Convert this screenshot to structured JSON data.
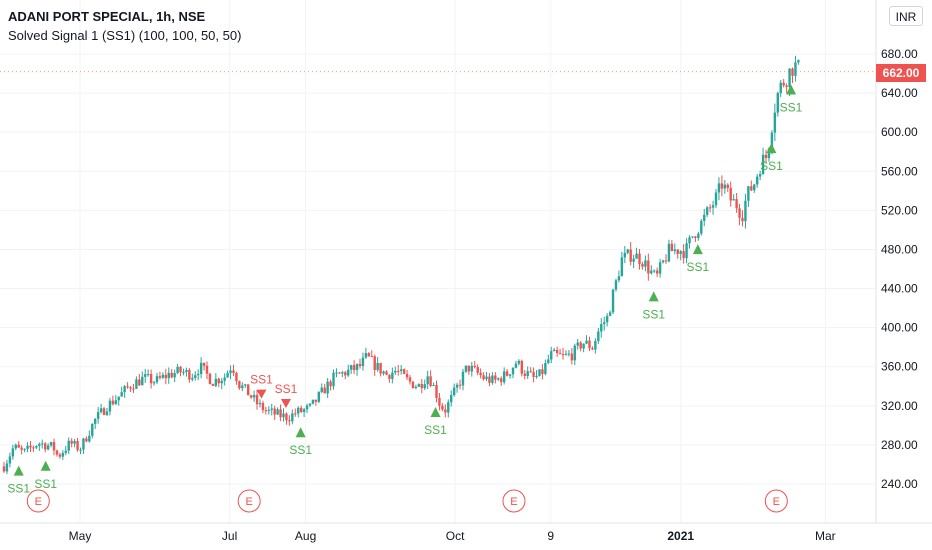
{
  "header": {
    "title": "ADANI PORT SPECIAL, 1h, NSE",
    "subtitle": "Solved Signal 1 (SS1) (100, 100, 50, 50)",
    "currency_button": "INR",
    "last_price_label": "662.00"
  },
  "colors": {
    "up": "#26a69a",
    "down": "#ef5350",
    "signal_buy": "#4caf50",
    "signal_sell": "#ef5350",
    "grid": "#f0f3fa",
    "axis_text": "#131722",
    "earnings": "#ef5350"
  },
  "icons": {
    "earnings_marker": "circle-E-icon",
    "buy_signal": "triangle-up-icon",
    "sell_signal": "triangle-down-icon"
  },
  "chart_data": {
    "type": "candlestick",
    "title": "ADANI PORT SPECIAL, 1h, NSE",
    "ylim": [
      220,
      720
    ],
    "x_range_days": [
      0,
      332
    ],
    "y_ticks": [
      "680.00",
      "640.00",
      "600.00",
      "560.00",
      "520.00",
      "480.00",
      "440.00",
      "400.00",
      "360.00",
      "320.00",
      "280.00",
      "240.00"
    ],
    "x_ticks": [
      {
        "label": "May",
        "day": 31
      },
      {
        "label": "Jul",
        "day": 92
      },
      {
        "label": "Aug",
        "day": 123
      },
      {
        "label": "Oct",
        "day": 184
      },
      {
        "label": "9",
        "day": 223
      },
      {
        "label": "2021",
        "day": 276
      },
      {
        "label": "Mar",
        "day": 335
      }
    ],
    "last_price": 662.0,
    "grid": true,
    "price_path": [
      [
        0,
        258
      ],
      [
        4,
        278
      ],
      [
        8,
        272
      ],
      [
        14,
        282
      ],
      [
        20,
        278
      ],
      [
        22,
        268
      ],
      [
        27,
        282
      ],
      [
        31,
        276
      ],
      [
        34,
        290
      ],
      [
        37,
        305
      ],
      [
        42,
        320
      ],
      [
        47,
        330
      ],
      [
        52,
        342
      ],
      [
        57,
        348
      ],
      [
        62,
        345
      ],
      [
        67,
        352
      ],
      [
        72,
        355
      ],
      [
        77,
        352
      ],
      [
        80,
        360
      ],
      [
        85,
        345
      ],
      [
        90,
        350
      ],
      [
        93,
        362
      ],
      [
        96,
        342
      ],
      [
        100,
        332
      ],
      [
        104,
        320
      ],
      [
        107,
        315
      ],
      [
        110,
        312
      ],
      [
        113,
        310
      ],
      [
        116,
        308
      ],
      [
        119,
        313
      ],
      [
        122,
        315
      ],
      [
        125,
        318
      ],
      [
        128,
        328
      ],
      [
        131,
        338
      ],
      [
        135,
        350
      ],
      [
        140,
        355
      ],
      [
        145,
        360
      ],
      [
        148,
        370
      ],
      [
        152,
        360
      ],
      [
        156,
        352
      ],
      [
        160,
        356
      ],
      [
        165,
        345
      ],
      [
        169,
        340
      ],
      [
        173,
        352
      ],
      [
        176,
        335
      ],
      [
        178,
        320
      ],
      [
        180,
        316
      ],
      [
        183,
        330
      ],
      [
        186,
        345
      ],
      [
        189,
        360
      ],
      [
        192,
        355
      ],
      [
        196,
        348
      ],
      [
        200,
        345
      ],
      [
        205,
        352
      ],
      [
        209,
        365
      ],
      [
        212,
        355
      ],
      [
        216,
        348
      ],
      [
        219,
        352
      ],
      [
        223,
        372
      ],
      [
        228,
        370
      ],
      [
        232,
        373
      ],
      [
        236,
        385
      ],
      [
        240,
        380
      ],
      [
        243,
        400
      ],
      [
        246,
        410
      ],
      [
        249,
        440
      ],
      [
        252,
        470
      ],
      [
        256,
        475
      ],
      [
        260,
        470
      ],
      [
        263,
        460
      ],
      [
        266,
        450
      ],
      [
        268,
        462
      ],
      [
        271,
        478
      ],
      [
        275,
        480
      ],
      [
        278,
        478
      ],
      [
        281,
        495
      ],
      [
        284,
        505
      ],
      [
        287,
        518
      ],
      [
        290,
        530
      ],
      [
        293,
        548
      ],
      [
        296,
        532
      ],
      [
        299,
        525
      ],
      [
        301,
        515
      ],
      [
        303,
        535
      ],
      [
        306,
        548
      ],
      [
        309,
        570
      ],
      [
        311,
        575
      ],
      [
        313,
        605
      ],
      [
        315,
        635
      ],
      [
        317,
        648
      ],
      [
        319,
        655
      ],
      [
        321,
        665
      ],
      [
        323,
        668
      ],
      [
        325,
        662
      ]
    ],
    "signals": [
      {
        "day": 6,
        "type": "buy",
        "label": "SS1"
      },
      {
        "day": 17,
        "type": "buy",
        "label": "SS1"
      },
      {
        "day": 105,
        "type": "sell",
        "label": "SS1"
      },
      {
        "day": 115,
        "type": "sell",
        "label": "SS1"
      },
      {
        "day": 121,
        "type": "buy",
        "label": "SS1"
      },
      {
        "day": 176,
        "type": "buy",
        "label": "SS1"
      },
      {
        "day": 265,
        "type": "buy",
        "label": "SS1"
      },
      {
        "day": 283,
        "type": "buy",
        "label": "SS1"
      },
      {
        "day": 313,
        "type": "buy",
        "label": "SS1"
      },
      {
        "day": 321,
        "type": "buy",
        "label": "SS1"
      }
    ],
    "earnings_days": [
      14,
      100,
      208,
      315
    ],
    "earnings_label": "E"
  }
}
